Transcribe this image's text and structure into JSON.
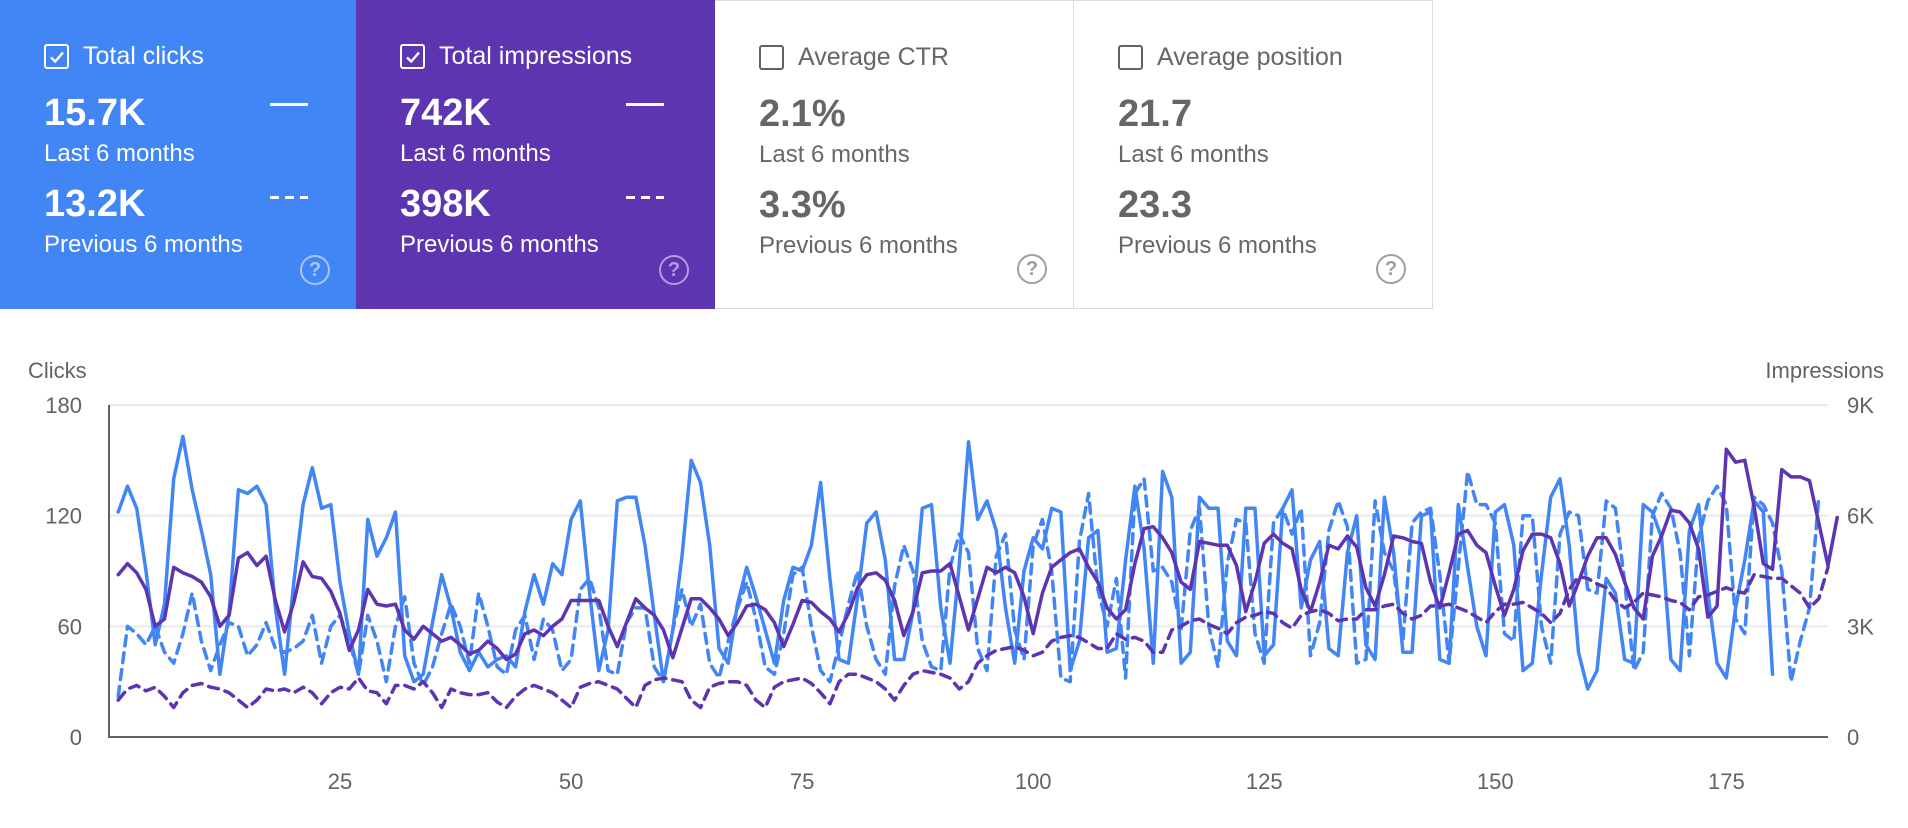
{
  "cards": [
    {
      "key": "clicks",
      "label": "Total clicks",
      "checked": true,
      "value_current": "15.7K",
      "label_current": "Last 6 months",
      "value_previous": "13.2K",
      "label_previous": "Previous 6 months",
      "color": "#4285f4"
    },
    {
      "key": "impr",
      "label": "Total impressions",
      "checked": true,
      "value_current": "742K",
      "label_current": "Last 6 months",
      "value_previous": "398K",
      "label_previous": "Previous 6 months",
      "color": "#5e35b1"
    },
    {
      "key": "ctr",
      "label": "Average CTR",
      "checked": false,
      "value_current": "2.1%",
      "label_current": "Last 6 months",
      "value_previous": "3.3%",
      "label_previous": "Previous 6 months"
    },
    {
      "key": "pos",
      "label": "Average position",
      "checked": false,
      "value_current": "21.7",
      "label_current": "Last 6 months",
      "value_previous": "23.3",
      "label_previous": "Previous 6 months"
    }
  ],
  "help_glyph": "?",
  "chart_data": {
    "type": "line",
    "left_axis_label": "Clicks",
    "right_axis_label": "Impressions",
    "left_ylim": [
      0,
      180
    ],
    "right_ylim": [
      0,
      9000
    ],
    "left_ticks": [
      "0",
      "60",
      "120",
      "180"
    ],
    "right_ticks": [
      "0",
      "3K",
      "6K",
      "9K"
    ],
    "x_ticks": [
      "25",
      "50",
      "75",
      "100",
      "125",
      "150",
      "175"
    ],
    "x_tick_values": [
      25,
      50,
      75,
      100,
      125,
      150,
      175
    ],
    "xlim": [
      0,
      186
    ],
    "grid": true,
    "series": [
      {
        "metric": "clicks",
        "period": "current",
        "axis": "left",
        "style": "solid",
        "color": "#4285f4",
        "values": [
          122,
          136,
          124,
          90,
          50,
          72,
          140,
          163,
          134,
          112,
          88,
          34,
          68,
          134,
          132,
          136,
          126,
          70,
          34,
          84,
          126,
          146,
          124,
          126,
          84,
          56,
          34,
          118,
          98,
          108,
          122,
          44,
          30,
          34,
          62,
          88,
          70,
          46,
          36,
          46,
          38,
          42,
          44,
          38,
          68,
          88,
          72,
          94,
          88,
          118,
          128,
          78,
          36,
          58,
          128,
          130,
          130,
          104,
          66,
          30,
          58,
          98,
          150,
          138,
          104,
          48,
          40,
          72,
          92,
          76,
          58,
          40,
          74,
          92,
          90,
          104,
          138,
          86,
          42,
          40,
          76,
          116,
          122,
          96,
          42,
          42,
          68,
          124,
          126,
          70,
          40,
          94,
          160,
          118,
          128,
          112,
          70,
          40,
          90,
          108,
          102,
          124,
          122,
          36,
          52,
          108,
          112,
          46,
          48,
          96,
          136,
          102,
          40,
          144,
          130,
          40,
          46,
          130,
          124,
          124,
          52,
          44,
          124,
          124,
          44,
          50,
          124,
          134,
          70,
          96,
          106,
          48,
          44,
          100,
          120,
          50,
          42,
          130,
          100,
          46,
          46,
          120,
          122,
          42,
          40,
          126,
          92,
          60,
          44,
          122,
          126,
          104,
          36,
          40,
          88,
          130,
          140,
          104,
          46,
          26,
          36,
          86,
          78,
          42,
          40,
          126,
          122,
          108,
          42,
          36,
          112,
          126,
          78,
          40,
          32,
          70,
          96,
          128,
          122,
          34
        ],
        "x_start": 1
      },
      {
        "metric": "clicks",
        "period": "previous",
        "axis": "left",
        "style": "dash",
        "color": "#4285f4",
        "values": [
          22,
          60,
          56,
          50,
          60,
          46,
          40,
          56,
          78,
          52,
          36,
          50,
          62,
          60,
          44,
          50,
          62,
          48,
          46,
          48,
          52,
          66,
          40,
          60,
          66,
          52,
          34,
          66,
          52,
          30,
          60,
          76,
          40,
          28,
          38,
          56,
          72,
          60,
          40,
          78,
          60,
          38,
          34,
          58,
          66,
          42,
          64,
          58,
          36,
          42,
          80,
          86,
          70,
          36,
          34,
          62,
          70,
          70,
          38,
          30,
          58,
          80,
          60,
          72,
          40,
          32,
          52,
          70,
          84,
          64,
          38,
          34,
          56,
          88,
          92,
          60,
          36,
          30,
          50,
          72,
          90,
          60,
          42,
          34,
          82,
          104,
          90,
          52,
          38,
          36,
          92,
          110,
          100,
          48,
          36,
          98,
          110,
          58,
          42,
          104,
          118,
          90,
          32,
          30,
          106,
          132,
          80,
          60,
          86,
          32,
          132,
          140,
          90,
          92,
          84,
          58,
          112,
          124,
          60,
          38,
          94,
          118,
          116,
          56,
          40,
          116,
          124,
          110,
          124,
          44,
          62,
          112,
          128,
          114,
          40,
          42,
          128,
          100,
          90,
          52,
          116,
          122,
          124,
          88,
          40,
          92,
          144,
          126,
          126,
          116,
          56,
          52,
          120,
          120,
          60,
          40,
          110,
          122,
          120,
          80,
          78,
          128,
          124,
          84,
          36,
          46,
          120,
          132,
          124,
          100,
          44,
          108,
          128,
          136,
          126,
          64,
          56,
          130,
          126,
          116,
          90,
          30,
          52,
          70,
          130
        ],
        "x_start": 1
      },
      {
        "metric": "impressions",
        "period": "current",
        "axis": "right",
        "style": "solid",
        "color": "#5e35b1",
        "values": [
          4400,
          4700,
          4450,
          4000,
          3000,
          3200,
          4600,
          4450,
          4350,
          4200,
          3800,
          3000,
          3300,
          4850,
          5000,
          4650,
          4900,
          3700,
          2850,
          3650,
          4750,
          4350,
          4300,
          3950,
          3350,
          2350,
          2900,
          4000,
          3600,
          3550,
          3600,
          2900,
          2650,
          3000,
          2800,
          2600,
          2700,
          2500,
          2250,
          2350,
          2600,
          2400,
          2100,
          2250,
          2800,
          2900,
          2750,
          3000,
          3200,
          3700,
          3700,
          3700,
          3700,
          3000,
          2450,
          3100,
          3750,
          3500,
          3300,
          2900,
          2150,
          2950,
          3750,
          3750,
          3500,
          3200,
          2750,
          3100,
          3550,
          3600,
          3450,
          3100,
          2450,
          3050,
          3700,
          3650,
          3400,
          3200,
          2850,
          3350,
          4050,
          4400,
          4450,
          4250,
          3700,
          2750,
          3400,
          4450,
          4500,
          4500,
          4700,
          3800,
          2900,
          3750,
          4600,
          4450,
          4600,
          4450,
          3800,
          2800,
          3900,
          4600,
          4800,
          5000,
          5100,
          4600,
          4200,
          3500,
          3200,
          3450,
          4700,
          5650,
          5700,
          5400,
          5000,
          4200,
          4000,
          5300,
          5250,
          5200,
          5200,
          4650,
          3400,
          4200,
          5250,
          5500,
          5250,
          5100,
          4000,
          3400,
          4200,
          5200,
          5100,
          5450,
          5150,
          4050,
          3550,
          4400,
          5450,
          5400,
          5300,
          5250,
          4200,
          3500,
          4450,
          5500,
          5600,
          5200,
          5000,
          4100,
          3300,
          4000,
          5050,
          5500,
          5500,
          5400,
          4700,
          3550,
          4200,
          4900,
          5400,
          5400,
          4950,
          4200,
          3500,
          3200,
          4900,
          5450,
          6150,
          6100,
          5800,
          5100,
          3250,
          3550,
          7800,
          7450,
          7500,
          6250,
          4700,
          4550,
          7250,
          7050,
          7050,
          6950,
          5800,
          4650,
          5950
        ],
        "x_start": 1
      },
      {
        "metric": "impressions",
        "period": "previous",
        "axis": "right",
        "style": "dash",
        "color": "#5e35b1",
        "values": [
          1000,
          1300,
          1400,
          1250,
          1350,
          1100,
          800,
          1200,
          1400,
          1450,
          1350,
          1300,
          1200,
          1000,
          800,
          1000,
          1300,
          1250,
          1300,
          1200,
          1350,
          1200,
          900,
          1200,
          1350,
          1300,
          1600,
          1250,
          1200,
          900,
          1400,
          1400,
          1300,
          1500,
          1200,
          800,
          1300,
          1200,
          1150,
          1150,
          1200,
          950,
          800,
          1100,
          1300,
          1400,
          1300,
          1200,
          1000,
          800,
          1350,
          1450,
          1500,
          1400,
          1300,
          1050,
          800,
          1400,
          1550,
          1600,
          1550,
          1500,
          1000,
          800,
          1350,
          1450,
          1500,
          1500,
          1400,
          1000,
          800,
          1350,
          1500,
          1550,
          1600,
          1450,
          1200,
          900,
          1500,
          1700,
          1700,
          1600,
          1500,
          1300,
          1000,
          1400,
          1700,
          1800,
          1750,
          1700,
          1600,
          1300,
          1500,
          2000,
          2200,
          2350,
          2400,
          2450,
          2350,
          2200,
          2300,
          2600,
          2700,
          2750,
          2700,
          2550,
          2400,
          2400,
          2800,
          2650,
          2700,
          2600,
          2300,
          2300,
          2900,
          3000,
          3150,
          3200,
          3050,
          2950,
          2800,
          3100,
          3250,
          3300,
          3400,
          3350,
          3100,
          2950,
          3300,
          3400,
          3450,
          3350,
          3150,
          3200,
          3200,
          3450,
          3450,
          3550,
          3600,
          3350,
          3200,
          3300,
          3550,
          3550,
          3600,
          3500,
          3400,
          3250,
          3100,
          3400,
          3600,
          3600,
          3650,
          3500,
          3350,
          3100,
          3350,
          4000,
          4350,
          4300,
          4150,
          4050,
          3700,
          3500,
          3650,
          3900,
          3850,
          3800,
          3700,
          3650,
          3450,
          3800,
          3850,
          3950,
          4050,
          3950,
          3900,
          4400,
          4350,
          4300,
          4300,
          4100,
          3900,
          3500,
          3750,
          4600
        ],
        "x_start": 1
      }
    ]
  }
}
